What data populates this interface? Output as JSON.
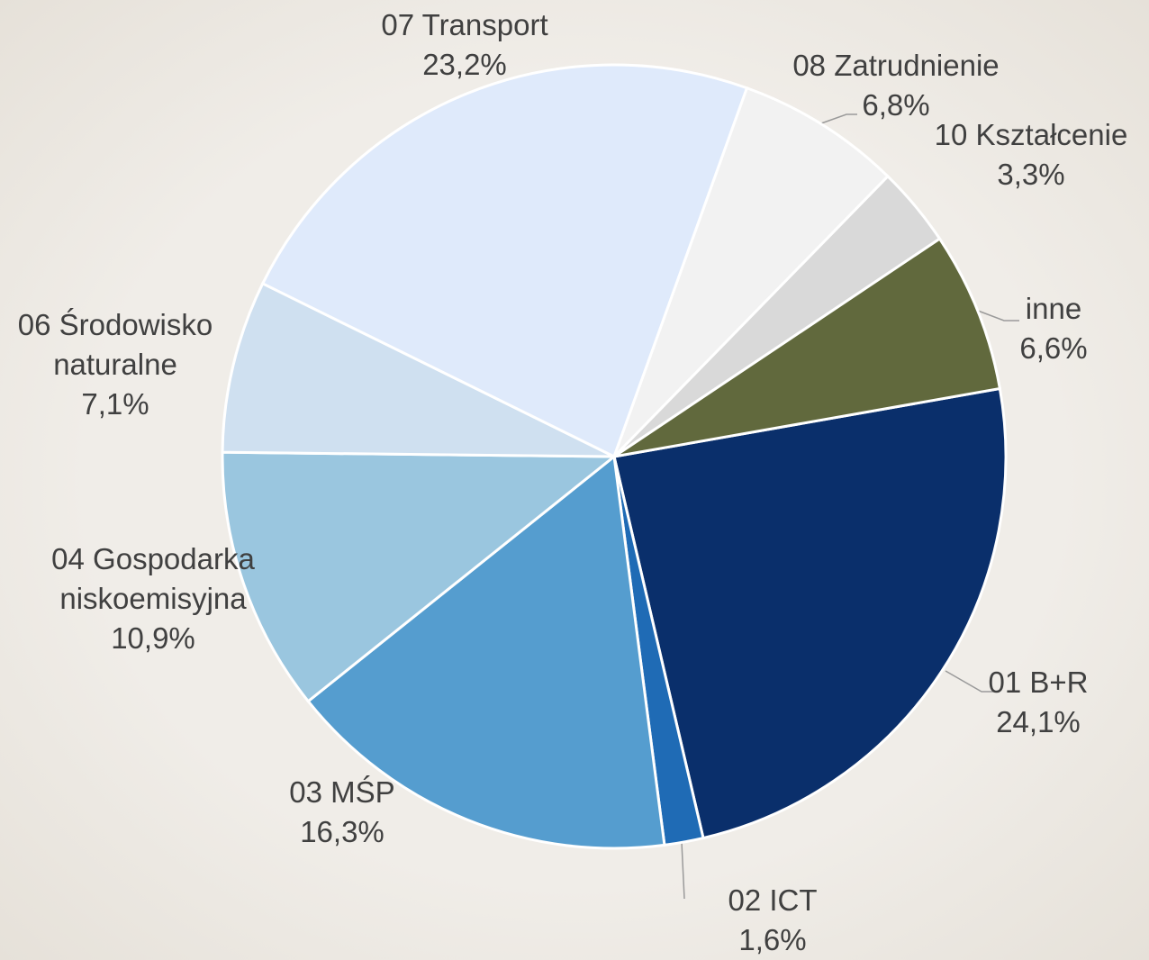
{
  "chart_data": {
    "type": "pie",
    "categories": [
      "01 B+R",
      "02 ICT",
      "03 MŚP",
      "04 Gospodarka niskoemisyjna",
      "06 Środowisko naturalne",
      "07 Transport",
      "08 Zatrudnienie",
      "10 Kształcenie",
      "inne"
    ],
    "values": [
      24.1,
      1.6,
      16.3,
      10.9,
      7.1,
      23.2,
      6.8,
      3.3,
      6.6
    ],
    "value_labels": [
      "24,1%",
      "1,6%",
      "16,3%",
      "10,9%",
      "7,1%",
      "23,2%",
      "6,8%",
      "3,3%",
      "6,6%"
    ],
    "colors": [
      "#0a2f6b",
      "#1f6bb5",
      "#559dcf",
      "#9ac6df",
      "#cfe0f0",
      "#dfeafb",
      "#f2f2f2",
      "#d9d9d9",
      "#61693d"
    ]
  }
}
